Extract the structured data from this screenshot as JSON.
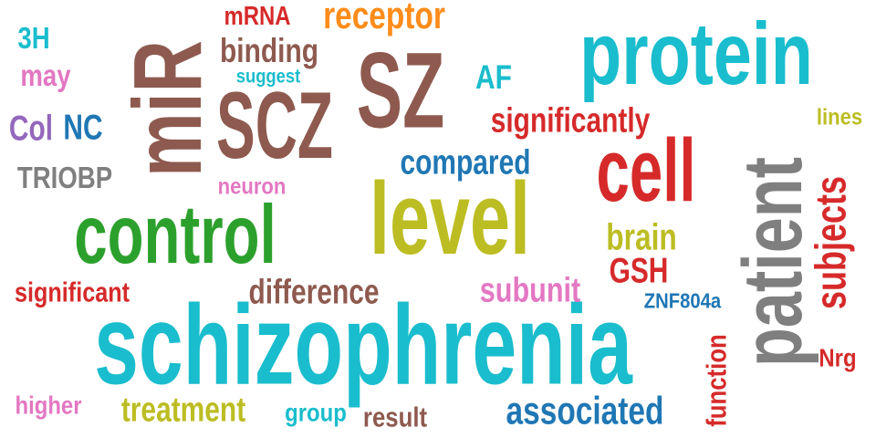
{
  "colors": {
    "teal": "#1ABDCD",
    "brown": "#8E5A4F",
    "red": "#D62A2A",
    "orange": "#FF8C1A",
    "green": "#2CA02C",
    "olive": "#BCBD22",
    "blue": "#1F77B4",
    "gray": "#7F7F7F",
    "pink": "#E377C2",
    "purple": "#9467BD"
  },
  "words": [
    {
      "key": "protein",
      "text": "protein",
      "color": "teal"
    },
    {
      "key": "schizophrenia",
      "text": "schizophrenia",
      "color": "teal"
    },
    {
      "key": "sz",
      "text": "SZ",
      "color": "brown"
    },
    {
      "key": "scz",
      "text": "SCZ",
      "color": "brown"
    },
    {
      "key": "mir",
      "text": "miR",
      "color": "brown"
    },
    {
      "key": "level",
      "text": "level",
      "color": "olive"
    },
    {
      "key": "control",
      "text": "control",
      "color": "green"
    },
    {
      "key": "cell",
      "text": "cell",
      "color": "red"
    },
    {
      "key": "patient",
      "text": "patient",
      "color": "gray"
    },
    {
      "key": "subjects",
      "text": "subjects",
      "color": "red"
    },
    {
      "key": "receptor",
      "text": "receptor",
      "color": "orange"
    },
    {
      "key": "mrna",
      "text": "mRNA",
      "color": "red"
    },
    {
      "key": "binding",
      "text": "binding",
      "color": "brown"
    },
    {
      "key": "suggest",
      "text": "suggest",
      "color": "teal"
    },
    {
      "key": "3h",
      "text": "3H",
      "color": "teal"
    },
    {
      "key": "may",
      "text": "may",
      "color": "pink"
    },
    {
      "key": "col",
      "text": "Col",
      "color": "purple"
    },
    {
      "key": "nc",
      "text": "NC",
      "color": "blue"
    },
    {
      "key": "triobp",
      "text": "TRIOBP",
      "color": "gray"
    },
    {
      "key": "af",
      "text": "AF",
      "color": "teal"
    },
    {
      "key": "significantly",
      "text": "significantly",
      "color": "red"
    },
    {
      "key": "lines",
      "text": "lines",
      "color": "olive"
    },
    {
      "key": "compared",
      "text": "compared",
      "color": "blue"
    },
    {
      "key": "neuron",
      "text": "neuron",
      "color": "pink"
    },
    {
      "key": "brain",
      "text": "brain",
      "color": "olive"
    },
    {
      "key": "gsh",
      "text": "GSH",
      "color": "red"
    },
    {
      "key": "significant",
      "text": "significant",
      "color": "red"
    },
    {
      "key": "difference",
      "text": "difference",
      "color": "brown"
    },
    {
      "key": "subunit",
      "text": "subunit",
      "color": "pink"
    },
    {
      "key": "znf804a",
      "text": "ZNF804a",
      "color": "blue"
    },
    {
      "key": "higher",
      "text": "higher",
      "color": "pink"
    },
    {
      "key": "treatment",
      "text": "treatment",
      "color": "olive"
    },
    {
      "key": "group",
      "text": "group",
      "color": "teal"
    },
    {
      "key": "result",
      "text": "result",
      "color": "brown"
    },
    {
      "key": "associated",
      "text": "associated",
      "color": "blue"
    },
    {
      "key": "function",
      "text": "function",
      "color": "red"
    },
    {
      "key": "nrg",
      "text": "Nrg",
      "color": "red"
    }
  ]
}
